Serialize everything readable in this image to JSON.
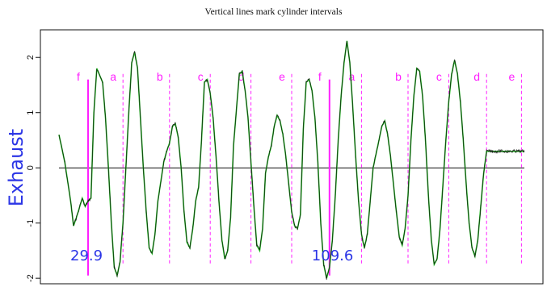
{
  "chart_data": {
    "type": "line",
    "title": "Vertical lines mark cylinder intervals",
    "ylabel": "Exhaust",
    "xlabel": "",
    "ylim": [
      -2.1,
      2.5
    ],
    "xlim": [
      0,
      160
    ],
    "yticks": [
      -2,
      -1,
      0,
      1,
      2
    ],
    "ytick_labels": [
      "-2",
      "-1",
      "0",
      "1",
      "2"
    ],
    "zero_line": true,
    "grid": false,
    "series": [
      {
        "color": "#22c022",
        "x": [
          0,
          2,
          4,
          5,
          6,
          8,
          9,
          10,
          11,
          12,
          13,
          15,
          16,
          17,
          18,
          19,
          20,
          21,
          22,
          24,
          25,
          26,
          27,
          28,
          29,
          30,
          31,
          32,
          33,
          34,
          36,
          37,
          38,
          39,
          40,
          41,
          42,
          43,
          44,
          45,
          46,
          47,
          48,
          49,
          50,
          51,
          52,
          53,
          54,
          55,
          56,
          57,
          58,
          59,
          60,
          62,
          63,
          64,
          65,
          66,
          67,
          68,
          69,
          70,
          71,
          72,
          73,
          74,
          75,
          76,
          77,
          78,
          79,
          80,
          81,
          82,
          83,
          84,
          85,
          86,
          87,
          88,
          89,
          90,
          91,
          92,
          93,
          94,
          95,
          96,
          97,
          98,
          99,
          100,
          101,
          102,
          103,
          104,
          105,
          106,
          107,
          108,
          109,
          110,
          111,
          112,
          113,
          114,
          115,
          116,
          117,
          118,
          119,
          120,
          121,
          122,
          123,
          124,
          125,
          126,
          127,
          128,
          129,
          130,
          131,
          132,
          133,
          134,
          135,
          136,
          137,
          138,
          139,
          140,
          141,
          142,
          143,
          144,
          145,
          146,
          147,
          148,
          149,
          150,
          151,
          152,
          153,
          154,
          155,
          156,
          157,
          158,
          159,
          160
        ],
        "y": [
          0.6,
          0.1,
          -0.6,
          -1.05,
          -0.9,
          -0.55,
          -0.7,
          -0.6,
          -0.55,
          1.0,
          1.8,
          1.55,
          0.9,
          0.0,
          -1.0,
          -1.8,
          -1.95,
          -1.7,
          -1.0,
          1.0,
          1.9,
          2.1,
          1.8,
          0.9,
          0.0,
          -0.8,
          -1.45,
          -1.55,
          -1.2,
          -0.6,
          0.1,
          0.3,
          0.45,
          0.75,
          0.8,
          0.55,
          0.0,
          -0.8,
          -1.35,
          -1.45,
          -1.1,
          -0.6,
          -0.35,
          0.5,
          1.55,
          1.6,
          1.35,
          0.9,
          0.2,
          -0.6,
          -1.3,
          -1.65,
          -1.5,
          -0.9,
          0.4,
          1.7,
          1.75,
          1.4,
          0.9,
          0.1,
          -0.7,
          -1.4,
          -1.5,
          -1.1,
          -0.1,
          0.2,
          0.4,
          0.75,
          0.95,
          0.85,
          0.6,
          0.2,
          -0.3,
          -0.8,
          -1.05,
          -1.1,
          -0.85,
          0.7,
          1.55,
          1.6,
          1.4,
          0.9,
          0.1,
          -1.0,
          -1.75,
          -2.0,
          -1.8,
          -1.3,
          -0.5,
          0.5,
          1.3,
          1.9,
          2.3,
          1.9,
          1.1,
          0.2,
          -0.6,
          -1.2,
          -1.45,
          -1.2,
          -0.6,
          0.0,
          0.25,
          0.5,
          0.75,
          0.85,
          0.6,
          0.2,
          -0.3,
          -0.8,
          -1.25,
          -1.4,
          -1.1,
          -0.5,
          0.5,
          1.3,
          1.8,
          1.75,
          1.3,
          0.5,
          -0.5,
          -1.3,
          -1.75,
          -1.65,
          -1.1,
          -0.3,
          0.5,
          1.2,
          1.7,
          1.95,
          1.7,
          1.2,
          0.5,
          -0.3,
          -1.0,
          -1.45,
          -1.6,
          -1.3,
          -0.7,
          -0.1,
          0.3,
          0.3,
          0.3,
          0.3,
          0.3,
          0.3,
          0.3,
          0.3,
          0.3,
          0.3,
          0.3,
          0.3,
          0.3,
          0.3
        ]
      }
    ],
    "crank_markers": [
      {
        "x": 10,
        "label": "29.9"
      },
      {
        "x": 93,
        "label": "109.6"
      }
    ],
    "intervals": [
      {
        "label": "f",
        "x": 10,
        "solid": true
      },
      {
        "label": "a",
        "x": 22,
        "solid": false
      },
      {
        "label": "b",
        "x": 38,
        "solid": false
      },
      {
        "label": "c",
        "x": 52,
        "solid": false
      },
      {
        "label": "d",
        "x": 66,
        "solid": false
      },
      {
        "label": "e",
        "x": 80,
        "solid": false
      },
      {
        "label": "f",
        "x": 93,
        "solid": true
      },
      {
        "label": "a",
        "x": 104,
        "solid": false
      },
      {
        "label": "b",
        "x": 120,
        "solid": false
      },
      {
        "label": "c",
        "x": 134,
        "solid": false
      },
      {
        "label": "d",
        "x": 147,
        "solid": false
      },
      {
        "label": "e",
        "x": 159,
        "solid": false
      }
    ],
    "colors": {
      "line": "#22c022",
      "noise": "#111111",
      "interval": "#ff20ff",
      "label": "#2b35e6",
      "axis": "#111111"
    }
  }
}
